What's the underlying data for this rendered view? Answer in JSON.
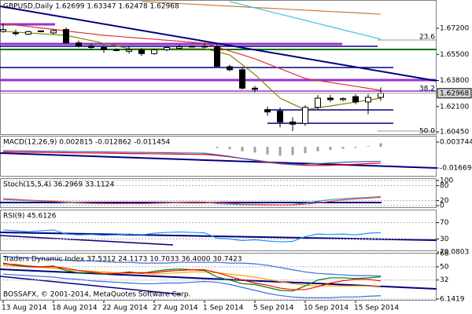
{
  "chart_data": [
    {
      "type": "candlestick",
      "title": "GBPUSD,Daily  1.62699 1.63347 1.62478 1.62968",
      "categories": [
        "13 Aug 2014",
        null,
        null,
        null,
        "18 Aug 2014",
        null,
        null,
        null,
        "22 Aug 2014",
        null,
        null,
        null,
        "27 Aug 2014",
        null,
        null,
        null,
        "1 Sep 2014",
        null,
        null,
        null,
        "5 Sep 2014",
        null,
        null,
        null,
        "10 Sep 2014",
        null,
        null,
        null,
        "15 Sep 2014",
        null,
        null
      ],
      "open": [
        1.67,
        1.669,
        1.6682,
        1.67,
        1.669,
        1.6712,
        1.6625,
        1.6605,
        1.6595,
        1.658,
        1.657,
        1.658,
        1.6555,
        1.658,
        1.659,
        1.66,
        1.6603,
        1.66,
        1.647,
        1.645,
        1.633,
        1.619,
        1.618,
        1.611,
        1.61,
        1.6205,
        1.6265,
        1.6255,
        1.6275,
        1.624,
        1.627
      ],
      "high": [
        1.675,
        1.6712,
        1.6705,
        1.6706,
        1.6712,
        1.6725,
        1.664,
        1.662,
        1.6608,
        1.659,
        1.66,
        1.6592,
        1.6588,
        1.6605,
        1.6612,
        1.6608,
        1.6625,
        1.6612,
        1.6482,
        1.6468,
        1.6345,
        1.621,
        1.6205,
        1.614,
        1.6218,
        1.6285,
        1.6285,
        1.627,
        1.629,
        1.629,
        1.6335
      ],
      "low": [
        1.669,
        1.6672,
        1.6676,
        1.6694,
        1.668,
        1.6618,
        1.6595,
        1.6585,
        1.656,
        1.657,
        1.6555,
        1.654,
        1.6548,
        1.657,
        1.6585,
        1.6595,
        1.659,
        1.6468,
        1.644,
        1.632,
        1.6305,
        1.615,
        1.6075,
        1.605,
        1.6085,
        1.619,
        1.624,
        1.6245,
        1.6225,
        1.616,
        1.6248
      ],
      "close": [
        1.6712,
        1.6688,
        1.6698,
        1.6703,
        1.6705,
        1.6625,
        1.6605,
        1.6595,
        1.658,
        1.6575,
        1.658,
        1.6555,
        1.658,
        1.6595,
        1.66,
        1.6603,
        1.66,
        1.6472,
        1.645,
        1.633,
        1.6322,
        1.6175,
        1.611,
        1.6095,
        1.6205,
        1.6265,
        1.6255,
        1.6262,
        1.624,
        1.627,
        1.62968
      ],
      "bull_color": "#ffffff",
      "bear_color": "#000000",
      "candle_outline": "#000000",
      "series": [
        {
          "color": "#cc7a33",
          "values": [
            null,
            null,
            null,
            null,
            null,
            null,
            null,
            null,
            null,
            null,
            null,
            1.6894,
            1.689,
            1.6886,
            1.6881,
            1.6877,
            1.6873,
            1.6868,
            1.6864,
            1.686,
            1.6855,
            1.6851,
            1.6847,
            1.6842,
            1.6838,
            1.6834,
            1.6829,
            1.6825,
            1.6821,
            1.6816,
            1.6812
          ]
        },
        {
          "color": "#40c0e0",
          "values": [
            null,
            null,
            null,
            null,
            null,
            null,
            null,
            null,
            null,
            null,
            null,
            null,
            null,
            null,
            null,
            null,
            null,
            null,
            1.6894,
            1.6874,
            1.6853,
            1.6833,
            1.6812,
            1.6792,
            1.6772,
            1.6751,
            1.6731,
            1.671,
            1.669,
            1.667,
            1.6649
          ]
        },
        {
          "color": "#e03030",
          "values": [
            1.6751,
            1.6741,
            1.6732,
            1.6722,
            1.6713,
            1.6703,
            1.6693,
            1.6684,
            1.6674,
            1.6668,
            1.6661,
            1.6655,
            1.6649,
            1.6642,
            1.6636,
            1.6629,
            1.6623,
            1.6598,
            1.6572,
            1.6547,
            1.6521,
            1.6489,
            1.6457,
            1.6425,
            1.6393,
            1.638,
            1.6367,
            1.6355,
            1.6342,
            1.6329,
            1.6316
          ]
        },
        {
          "color": "#808000",
          "values": [
            1.67,
            1.6695,
            1.669,
            1.6684,
            1.6679,
            1.6674,
            1.6657,
            1.664,
            1.6622,
            1.6605,
            1.6587,
            1.6587,
            1.6587,
            1.6587,
            1.6587,
            1.6587,
            1.6587,
            1.6567,
            1.6546,
            1.6483,
            1.6419,
            1.6342,
            1.6265,
            1.6227,
            1.6189,
            1.6202,
            1.6214,
            1.6227,
            1.624,
            1.6253,
            1.6265
          ]
        }
      ],
      "ylim": [
        1.6035,
        1.6894
      ],
      "yticks": [
        {
          "value": 1.672,
          "label": "1.67200"
        },
        {
          "value": 1.655,
          "label": "1.65500"
        },
        {
          "value": 1.638,
          "label": "1.63800"
        },
        {
          "value": 1.621,
          "label": "1.62100"
        },
        {
          "value": 1.6045,
          "label": "1.60450"
        }
      ],
      "last_price": 1.62968,
      "annotations": [
        "23.6",
        "38.2",
        "50.0"
      ],
      "grid": false
    },
    {
      "type": "macd",
      "title": "MACD(12,26,9) 0.002815 -0.012862 -0.011454",
      "histogram": {
        "color": "#a0a0a0",
        "values": [
          0.0004,
          0.0003,
          0.0003,
          0.0002,
          0.0002,
          0.0001,
          0.0001,
          0.0,
          -0.0001,
          -0.0001,
          -0.0001,
          -0.0001,
          0.0,
          0.0001,
          0.0001,
          0.0001,
          0.0,
          -0.001,
          -0.002,
          -0.0035,
          -0.0045,
          -0.006,
          -0.007,
          -0.0065,
          -0.005,
          -0.0035,
          -0.0025,
          -0.0015,
          -0.0008,
          0.0005,
          0.002815
        ]
      },
      "series": [
        {
          "color": "#ff0000",
          "values": [
            -0.004,
            -0.0041,
            -0.0043,
            -0.0044,
            -0.0045,
            -0.0046,
            -0.0048,
            -0.0049,
            -0.005,
            -0.0051,
            -0.0053,
            -0.0054,
            -0.0055,
            -0.0056,
            -0.0058,
            -0.0059,
            -0.006,
            -0.0068,
            -0.0079,
            -0.0092,
            -0.0105,
            -0.0118,
            -0.013,
            -0.014,
            -0.0146,
            -0.0148,
            -0.0146,
            -0.0142,
            -0.0137,
            -0.0133,
            -0.012862
          ]
        },
        {
          "color": "#4060c0",
          "values": [
            -0.003,
            -0.0031,
            -0.0033,
            -0.0034,
            -0.0035,
            -0.0036,
            -0.0038,
            -0.0039,
            -0.004,
            -0.0041,
            -0.0043,
            -0.0044,
            -0.0045,
            -0.0046,
            -0.0048,
            -0.0049,
            -0.005,
            -0.0062,
            -0.0075,
            -0.0092,
            -0.0108,
            -0.0122,
            -0.0134,
            -0.014,
            -0.0138,
            -0.0133,
            -0.0127,
            -0.0122,
            -0.0118,
            -0.0116,
            -0.011454
          ]
        }
      ],
      "ylim": [
        -0.016691,
        0.003744
      ],
      "yticks": [
        0.003744,
        -0.016691
      ],
      "grid": false
    },
    {
      "type": "line",
      "title": "Stoch(15,5,4) 36.2969 33.1124",
      "series": [
        {
          "color": "#20a0e0",
          "values": [
            25,
            22,
            20,
            18,
            17,
            12,
            10,
            9,
            8,
            8,
            9,
            8,
            10,
            12,
            14,
            15,
            14,
            8,
            6,
            4,
            4,
            3,
            3,
            4,
            10,
            18,
            24,
            28,
            30,
            33,
            36.2969
          ]
        },
        {
          "color": "#ff4040",
          "values": [
            28,
            25,
            22,
            20,
            18,
            15,
            13,
            10,
            9,
            8,
            8,
            8,
            9,
            10,
            12,
            14,
            14,
            12,
            9,
            6,
            5,
            4,
            3,
            3,
            6,
            11,
            17,
            23,
            27,
            30,
            33.1124
          ]
        }
      ],
      "ylim": [
        0,
        100
      ],
      "yticks": [
        100,
        80,
        20,
        0
      ],
      "grid": true
    },
    {
      "type": "line",
      "title": "RSI(9) 45.6126",
      "series": [
        {
          "color": "#1e90ff",
          "values": [
            52,
            50,
            48,
            50,
            52,
            42,
            40,
            41,
            39,
            40,
            42,
            40,
            44,
            46,
            47,
            46,
            45,
            32,
            30,
            26,
            28,
            25,
            23,
            24,
            36,
            42,
            41,
            42,
            40,
            44,
            45.6126
          ]
        }
      ],
      "ylim": [
        0,
        100
      ],
      "yticks": [
        70,
        30
      ],
      "grid": true
    },
    {
      "type": "line",
      "title": "Traders Dynamic Index 37.5312 24.1173 10.7033 36.4000 30.7423",
      "series": [
        {
          "color": "#4169e1",
          "values": [
            64,
            63,
            62,
            61,
            60,
            59,
            58,
            58,
            57,
            56,
            56,
            55,
            55,
            55,
            56,
            56,
            56,
            56,
            55,
            55,
            54,
            52,
            49,
            46,
            43,
            41,
            40,
            39,
            38,
            38,
            37.5312
          ]
        },
        {
          "color": "#ffa500",
          "values": [
            52,
            51,
            50,
            49,
            48,
            46,
            45,
            44,
            43,
            42,
            41,
            41,
            40,
            41,
            42,
            43,
            43,
            42,
            40,
            38,
            36,
            33,
            30,
            27,
            25,
            24,
            24,
            24,
            24,
            24,
            24.1173
          ]
        },
        {
          "color": "#4169e1",
          "values": [
            40,
            39,
            38,
            37,
            36,
            34,
            33,
            31,
            30,
            29,
            28,
            27,
            27,
            28,
            28,
            29,
            30,
            29,
            26,
            22,
            18,
            14,
            11,
            9,
            8,
            8,
            8,
            9,
            9,
            10,
            10.7033
          ]
        },
        {
          "color": "#008000",
          "values": [
            55,
            52,
            50,
            50,
            51,
            45,
            42,
            42,
            40,
            41,
            43,
            41,
            44,
            46,
            47,
            46,
            45,
            36,
            32,
            27,
            26,
            22,
            18,
            17,
            24,
            32,
            35,
            35,
            34,
            35,
            36.4
          ]
        },
        {
          "color": "#ff0000",
          "values": [
            54,
            53,
            51,
            50,
            50,
            48,
            45,
            43,
            41,
            41,
            42,
            42,
            42,
            44,
            45,
            46,
            46,
            42,
            37,
            32,
            28,
            25,
            21,
            19,
            19,
            23,
            28,
            31,
            33,
            33,
            30.7423
          ]
        }
      ],
      "ylim": [
        6.1419,
        70.0803
      ],
      "yticks": [
        70.0803,
        68,
        50,
        32,
        6.1419
      ],
      "grid": true
    }
  ],
  "copyright": "BOSSAFX, © 2001-2014, MetaQuotes Software Corp."
}
